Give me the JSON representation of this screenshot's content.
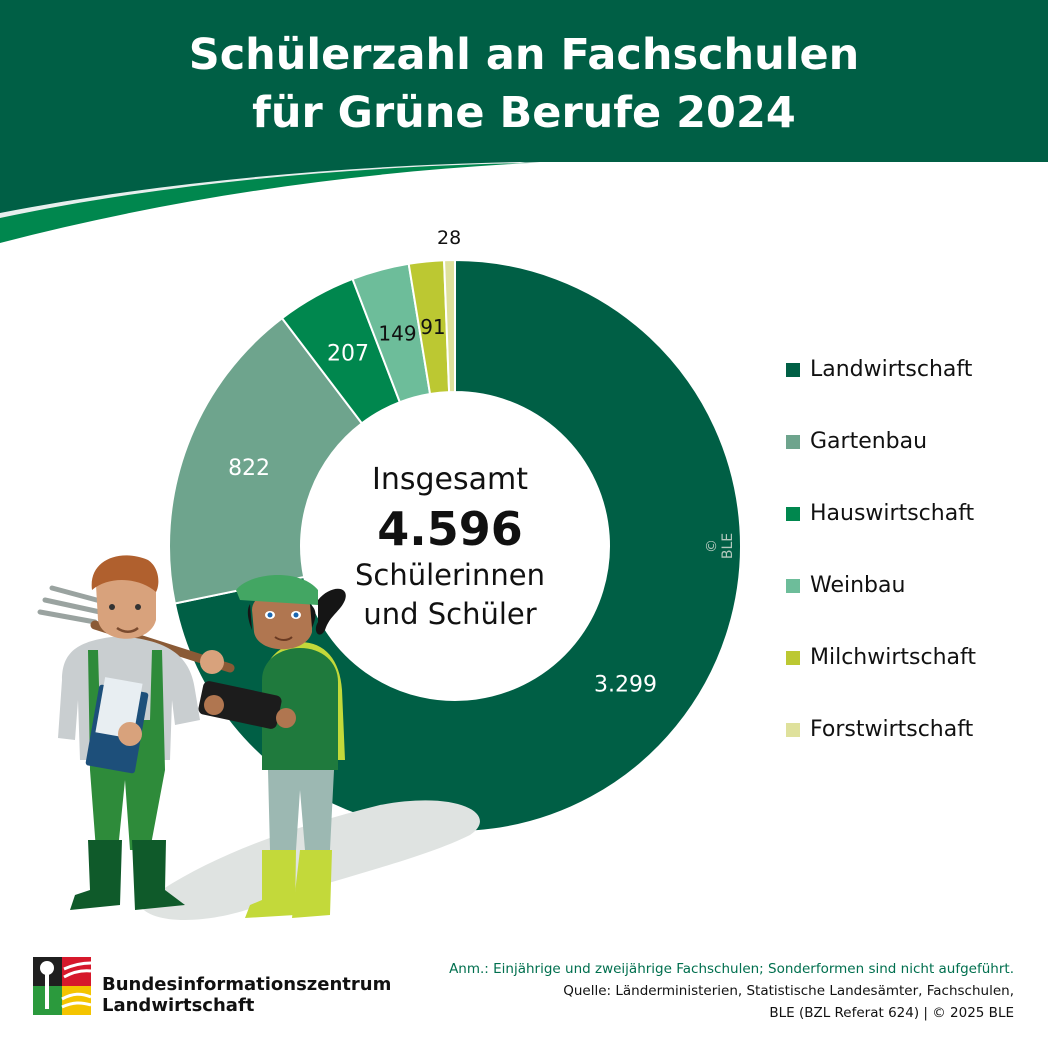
{
  "title": {
    "line1": "Schülerzahl an Fachschulen",
    "line2": "für Grüne Berufe 2024"
  },
  "center": {
    "label_top": "Insgesamt",
    "total": "4.596",
    "label_bottom_1": "Schülerinnen",
    "label_bottom_2": "und Schüler"
  },
  "chart_data": {
    "type": "pie",
    "variant": "donut",
    "legend_position": "right",
    "categories": [
      "Landwirtschaft",
      "Gartenbau",
      "Hauswirtschaft",
      "Weinbau",
      "Milchwirtschaft",
      "Forstwirtschaft"
    ],
    "values": [
      3299,
      822,
      207,
      149,
      91,
      28
    ],
    "value_labels": [
      "3.299",
      "822",
      "207",
      "149",
      "91",
      "28"
    ],
    "colors": [
      "#005f45",
      "#6ea48d",
      "#00874e",
      "#6dbd9a",
      "#bcc832",
      "#dfe19c"
    ],
    "label_colors": [
      "#ffffff",
      "#ffffff",
      "#ffffff",
      "#111111",
      "#111111",
      "#111111"
    ]
  },
  "copyright_mark": "© BLE",
  "footer": {
    "org_line1": "Bundesinformationszentrum",
    "org_line2": "Landwirtschaft",
    "note": "Anm.: Einjährige und zweijährige Fachschulen; Sonderformen sind nicht aufgeführt.",
    "source_line1": "Quelle: Länderministerien, Statistische Landesämter, Fachschulen,",
    "source_line2": "BLE (BZL Referat 624) | © 2025 BLE"
  },
  "colors": {
    "header_green": "#005f45",
    "swoosh_light": "#00874e",
    "text_dark": "#111111",
    "note_green": "#006f4e"
  },
  "illustration": {
    "description_icons": [
      "farmer-figure",
      "student-with-tablet"
    ]
  }
}
